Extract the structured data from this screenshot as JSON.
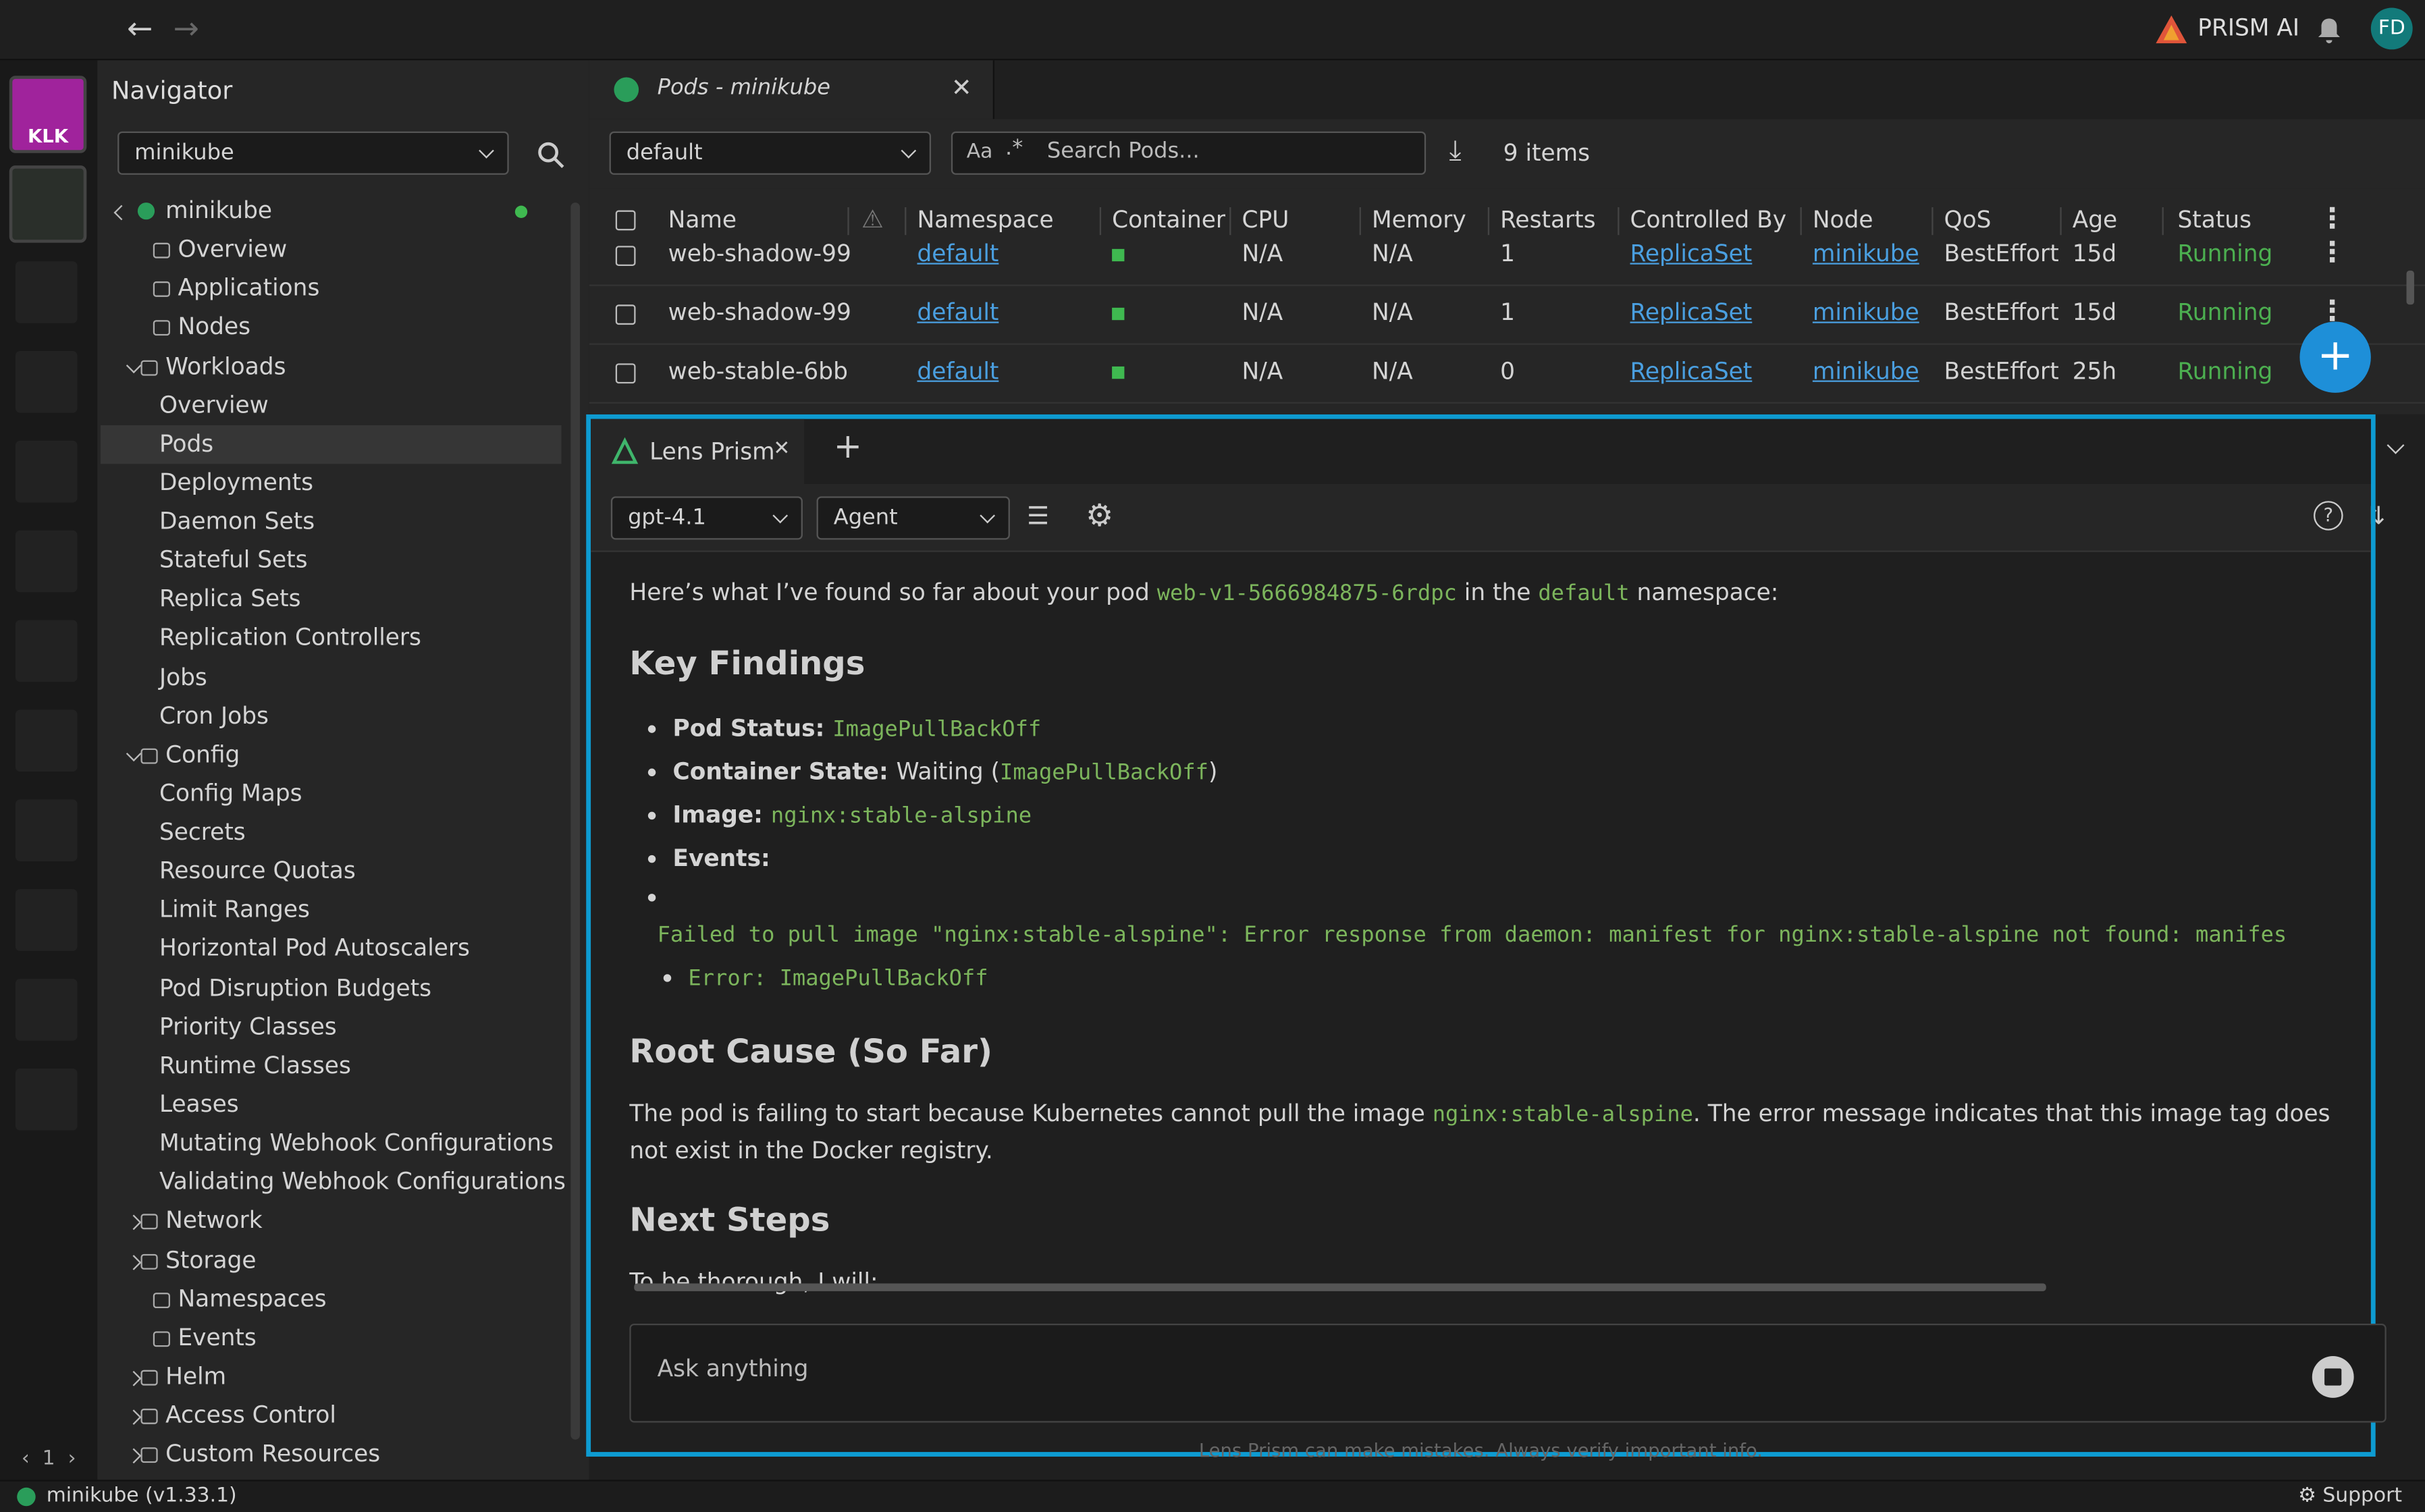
{
  "topbar": {
    "brand": "PRISM AI",
    "avatar": "FD"
  },
  "hotbar": {
    "cluster_label": "KLK",
    "page": "1"
  },
  "navigator": {
    "title": "Navigator",
    "cluster_select": "minikube",
    "cluster": "minikube",
    "items": [
      {
        "label": "Overview"
      },
      {
        "label": "Applications"
      },
      {
        "label": "Nodes"
      },
      {
        "label": "Workloads",
        "expanded": true,
        "children": [
          {
            "label": "Overview"
          },
          {
            "label": "Pods",
            "selected": true
          },
          {
            "label": "Deployments"
          },
          {
            "label": "Daemon Sets"
          },
          {
            "label": "Stateful Sets"
          },
          {
            "label": "Replica Sets"
          },
          {
            "label": "Replication Controllers"
          },
          {
            "label": "Jobs"
          },
          {
            "label": "Cron Jobs"
          }
        ]
      },
      {
        "label": "Config",
        "expanded": true,
        "children": [
          {
            "label": "Config Maps"
          },
          {
            "label": "Secrets"
          },
          {
            "label": "Resource Quotas"
          },
          {
            "label": "Limit Ranges"
          },
          {
            "label": "Horizontal Pod Autoscalers"
          },
          {
            "label": "Pod Disruption Budgets"
          },
          {
            "label": "Priority Classes"
          },
          {
            "label": "Runtime Classes"
          },
          {
            "label": "Leases"
          },
          {
            "label": "Mutating Webhook Configurations"
          },
          {
            "label": "Validating Webhook Configurations"
          }
        ]
      },
      {
        "label": "Network",
        "expanded": false
      },
      {
        "label": "Storage",
        "expanded": false
      },
      {
        "label": "Namespaces"
      },
      {
        "label": "Events"
      },
      {
        "label": "Helm",
        "expanded": false
      },
      {
        "label": "Access Control",
        "expanded": false
      },
      {
        "label": "Custom Resources",
        "expanded": false
      }
    ]
  },
  "pods": {
    "tab": "Pods - minikube",
    "namespace": "default",
    "case_toggle": "Aa",
    "search_placeholder": "Search Pods...",
    "count": "9 items",
    "columns": [
      "Name",
      "Namespace",
      "Container",
      "CPU",
      "Memory",
      "Restarts",
      "Controlled By",
      "Node",
      "QoS",
      "Age",
      "Status"
    ],
    "rows": [
      {
        "name": "web-shadow-99",
        "namespace": "default",
        "cpu": "N/A",
        "memory": "N/A",
        "restarts": "1",
        "controlled_by": "ReplicaSet",
        "node": "minikube",
        "qos": "BestEffort",
        "age": "15d",
        "status": "Running"
      },
      {
        "name": "web-shadow-99",
        "namespace": "default",
        "cpu": "N/A",
        "memory": "N/A",
        "restarts": "1",
        "controlled_by": "ReplicaSet",
        "node": "minikube",
        "qos": "BestEffort",
        "age": "15d",
        "status": "Running"
      },
      {
        "name": "web-stable-6bb",
        "namespace": "default",
        "cpu": "N/A",
        "memory": "N/A",
        "restarts": "0",
        "controlled_by": "ReplicaSet",
        "node": "minikube",
        "qos": "BestEffort",
        "age": "25h",
        "status": "Running"
      }
    ]
  },
  "prism": {
    "tab": "Lens Prism",
    "model": "gpt-4.1",
    "mode": "Agent",
    "intro": [
      {
        "text": "Here’s what I’ve found so far about your pod "
      },
      {
        "code": "web-v1-5666984875-6rdpc"
      },
      {
        "text": " in the "
      },
      {
        "code": "default"
      },
      {
        "text": " namespace:"
      }
    ],
    "heading_findings": "Key Findings",
    "findings": [
      [
        {
          "bold": "Pod Status: "
        },
        {
          "code": "ImagePullBackOff"
        }
      ],
      [
        {
          "bold": "Container State: "
        },
        {
          "text": "Waiting ("
        },
        {
          "code": "ImagePullBackOff"
        },
        {
          "text": ")"
        }
      ],
      [
        {
          "bold": "Image: "
        },
        {
          "code": "nginx:stable-alspine"
        }
      ],
      [
        {
          "bold": "Events:"
        }
      ]
    ],
    "events": [
      "Failed to pull image \"nginx:stable-alspine\": Error response from daemon: manifest for nginx:stable-alspine not found: manifes",
      "Error: ImagePullBackOff"
    ],
    "heading_cause": "Root Cause (So Far)",
    "cause": [
      {
        "text": "The pod is failing to start because Kubernetes cannot pull the image "
      },
      {
        "code": "nginx:stable-alspine"
      },
      {
        "text": ". The error message indicates that this image tag does not exist in the Docker registry."
      }
    ],
    "heading_next": "Next Steps",
    "next": "To be thorough, I will:",
    "input_placeholder": "Ask anything",
    "disclaimer": "Lens Prism can make mistakes. Always verify important info."
  },
  "statusbar": {
    "cluster": "minikube (v1.33.1)",
    "support": "Support"
  }
}
